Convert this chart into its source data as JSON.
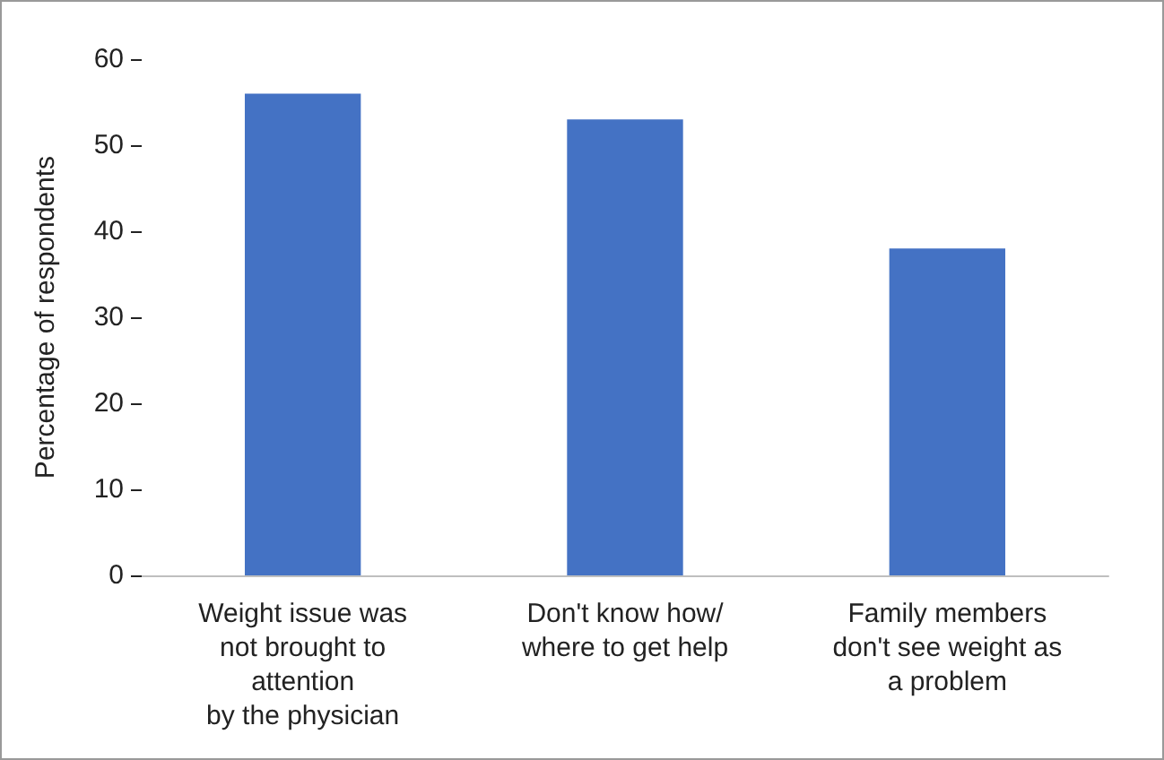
{
  "chart_data": {
    "type": "bar",
    "ylabel": "Percentage of respondents",
    "categories": [
      "Weight issue was\nnot brought to\nattention\nby the physician",
      "Don't know how/\nwhere to get help",
      "Family members\ndon't see weight as\na problem"
    ],
    "values": [
      56,
      53,
      38
    ],
    "color": "#4472c4",
    "ylim": [
      0,
      60
    ],
    "yticks": [
      0,
      10,
      20,
      30,
      40,
      50,
      60
    ],
    "grid": false
  }
}
